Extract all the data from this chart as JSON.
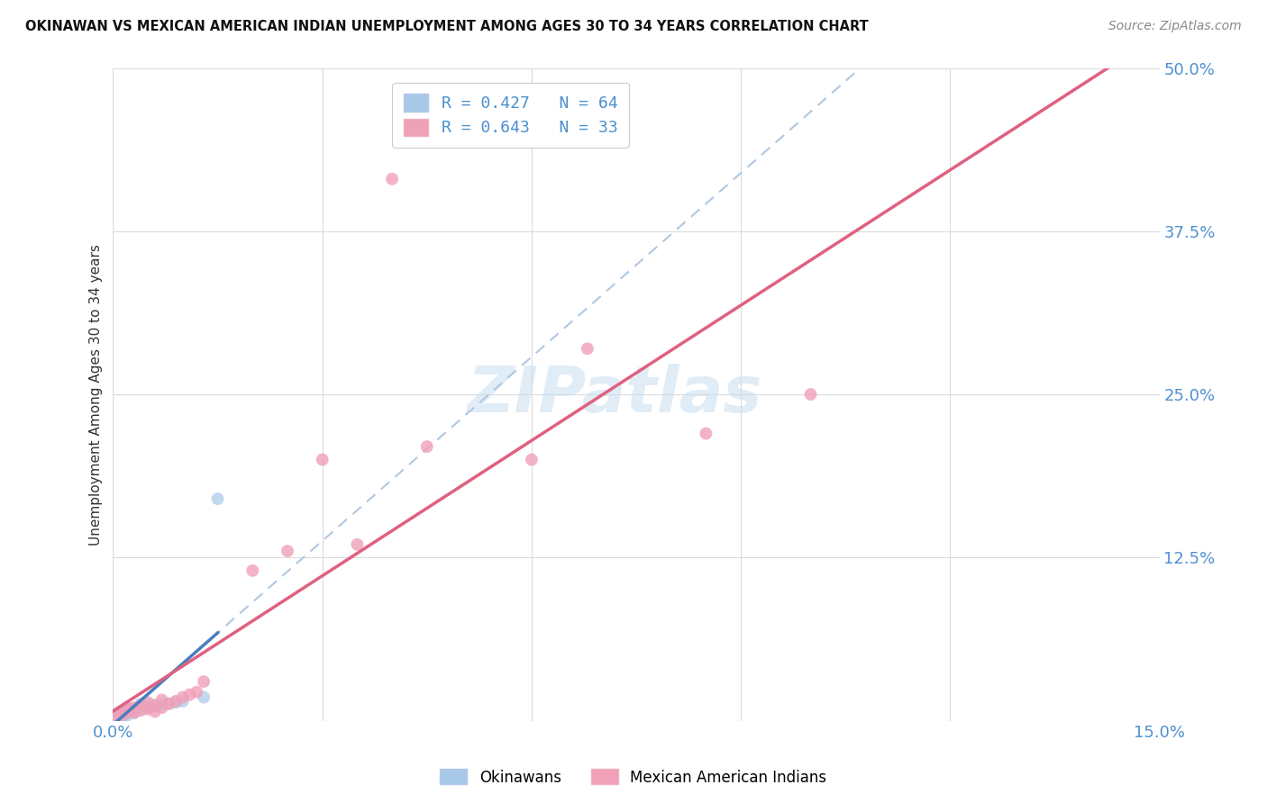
{
  "title": "OKINAWAN VS MEXICAN AMERICAN INDIAN UNEMPLOYMENT AMONG AGES 30 TO 34 YEARS CORRELATION CHART",
  "source": "Source: ZipAtlas.com",
  "ylabel": "Unemployment Among Ages 30 to 34 years",
  "xlim": [
    0.0,
    0.15
  ],
  "ylim": [
    0.0,
    0.5
  ],
  "xticks": [
    0.0,
    0.03,
    0.06,
    0.09,
    0.12,
    0.15
  ],
  "yticks": [
    0.0,
    0.125,
    0.25,
    0.375,
    0.5
  ],
  "xtick_labels": [
    "0.0%",
    "",
    "",
    "",
    "",
    "15.0%"
  ],
  "ytick_labels": [
    "",
    "12.5%",
    "25.0%",
    "37.5%",
    "50.0%"
  ],
  "legend_label_blue": "Okinawans",
  "legend_label_pink": "Mexican American Indians",
  "legend_text_blue": "R = 0.427   N = 64",
  "legend_text_pink": "R = 0.643   N = 33",
  "watermark_text": "ZIPatlas",
  "blue_scatter_color": "#a8c8e8",
  "pink_scatter_color": "#f0a0b8",
  "blue_line_color": "#4a7cc0",
  "pink_line_color": "#e06080",
  "dashed_line_color": "#b0c8e0",
  "legend_text_color": "#4a90d0",
  "tick_color": "#5090d0",
  "ok_x": [
    0.0002,
    0.0002,
    0.0002,
    0.0002,
    0.0002,
    0.0002,
    0.0002,
    0.0002,
    0.0002,
    0.0002,
    0.0004,
    0.0004,
    0.0004,
    0.0004,
    0.0004,
    0.0004,
    0.0005,
    0.0005,
    0.0005,
    0.0005,
    0.0006,
    0.0006,
    0.0007,
    0.0007,
    0.0008,
    0.0008,
    0.0009,
    0.0009,
    0.001,
    0.001,
    0.001,
    0.001,
    0.001,
    0.001,
    0.0012,
    0.0012,
    0.0013,
    0.0014,
    0.0015,
    0.0015,
    0.0016,
    0.0017,
    0.0018,
    0.002,
    0.002,
    0.002,
    0.0022,
    0.0023,
    0.0025,
    0.003,
    0.003,
    0.0032,
    0.0035,
    0.004,
    0.004,
    0.005,
    0.005,
    0.006,
    0.007,
    0.008,
    0.009,
    0.01,
    0.013,
    0.015
  ],
  "ok_y": [
    0.0001,
    0.0001,
    0.0002,
    0.0002,
    0.0003,
    0.0003,
    0.0004,
    0.0005,
    0.0006,
    0.0008,
    0.001,
    0.001,
    0.0012,
    0.0015,
    0.0018,
    0.002,
    0.001,
    0.0015,
    0.002,
    0.0025,
    0.0012,
    0.002,
    0.0015,
    0.0022,
    0.002,
    0.003,
    0.002,
    0.003,
    0.001,
    0.002,
    0.003,
    0.004,
    0.005,
    0.007,
    0.003,
    0.004,
    0.005,
    0.006,
    0.004,
    0.006,
    0.005,
    0.007,
    0.008,
    0.004,
    0.006,
    0.008,
    0.006,
    0.009,
    0.008,
    0.006,
    0.009,
    0.008,
    0.01,
    0.009,
    0.013,
    0.01,
    0.012,
    0.011,
    0.012,
    0.013,
    0.014,
    0.015,
    0.018,
    0.17
  ],
  "mex_x": [
    0.0005,
    0.001,
    0.001,
    0.0015,
    0.002,
    0.002,
    0.0025,
    0.003,
    0.003,
    0.004,
    0.004,
    0.005,
    0.005,
    0.006,
    0.006,
    0.007,
    0.007,
    0.008,
    0.009,
    0.01,
    0.011,
    0.012,
    0.013,
    0.02,
    0.025,
    0.03,
    0.035,
    0.04,
    0.045,
    0.06,
    0.068,
    0.085,
    0.1
  ],
  "mex_y": [
    0.003,
    0.004,
    0.006,
    0.005,
    0.007,
    0.01,
    0.008,
    0.006,
    0.01,
    0.008,
    0.012,
    0.009,
    0.014,
    0.007,
    0.012,
    0.01,
    0.016,
    0.013,
    0.015,
    0.018,
    0.02,
    0.022,
    0.03,
    0.115,
    0.13,
    0.2,
    0.135,
    0.415,
    0.21,
    0.2,
    0.285,
    0.22,
    0.25
  ],
  "blue_line_x_start": 0.0002,
  "blue_line_x_end": 0.015,
  "dashed_line_slope": 3.0,
  "dashed_line_intercept": 0.005,
  "pink_line_slope": 2.2,
  "pink_line_intercept": 0.005
}
